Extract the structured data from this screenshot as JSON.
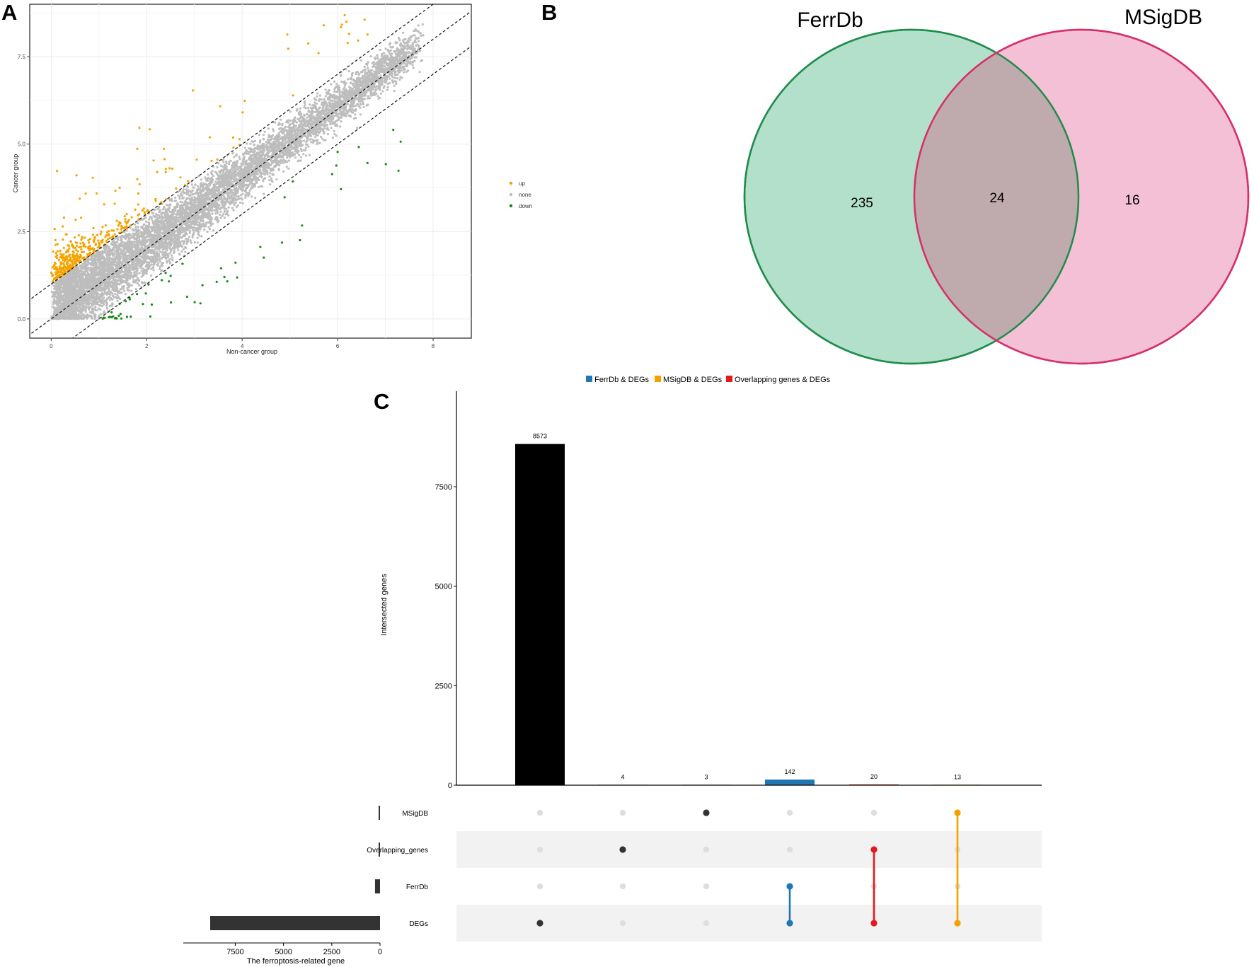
{
  "panels": {
    "a": "A",
    "b": "B",
    "c": "C"
  },
  "colors": {
    "up": "#f5a300",
    "none": "#bdbdbd",
    "down": "#168c16",
    "ferrdb": "#1f77b4",
    "msigdb": "#f5a000",
    "overlap": "#e31a1c",
    "venn_left_fill": "#b3e0ca",
    "venn_left_stroke": "#1e8c4a",
    "venn_right_fill": "#f4c0d6",
    "venn_right_stroke": "#d6306c",
    "venn_overlap_fill": "#bfaaae"
  },
  "chart_data": [
    {
      "type": "scatter",
      "panel": "A",
      "xlabel": "Non-cancer group",
      "ylabel": "Cancer group",
      "xlim": [
        -0.45,
        8.8
      ],
      "ylim": [
        -0.55,
        9.0
      ],
      "xticks": [
        "0",
        "2",
        "4",
        "6",
        "8"
      ],
      "yticks": [
        "0.0",
        "2.5",
        "5.0",
        "7.5"
      ],
      "xtick_values": [
        0,
        2,
        4,
        6,
        8
      ],
      "ytick_values": [
        0,
        2.5,
        5,
        7.5
      ],
      "reference_lines": [
        {
          "slope": 1,
          "intercept": 1
        },
        {
          "slope": 1,
          "intercept": 0
        },
        {
          "slope": 1,
          "intercept": -1
        }
      ],
      "legend": [
        {
          "label": "up",
          "color": "#f5a300"
        },
        {
          "label": "none",
          "color": "#bdbdbd"
        },
        {
          "label": "down",
          "color": "#168c16"
        }
      ],
      "legend_position": "right",
      "series": [
        {
          "name": "up",
          "description": "points above y = x + 1 (expression up in cancer)"
        },
        {
          "name": "none",
          "description": "points within the band |y - x| < 1"
        },
        {
          "name": "down",
          "description": "points below y = x - 1 (expression down in cancer)"
        }
      ]
    },
    {
      "type": "venn",
      "panel": "B",
      "sets": [
        {
          "name": "FerrDb",
          "only": "235"
        },
        {
          "name": "MSigDB",
          "only": "16"
        }
      ],
      "intersection": "24"
    },
    {
      "type": "upset",
      "panel": "C",
      "legend": [
        {
          "label": "FerrDb & DEGs",
          "color": "#1f77b4"
        },
        {
          "label": "MSigDB & DEGs",
          "color": "#f5a000"
        },
        {
          "label": "Overlapping genes & DEGs",
          "color": "#e31a1c"
        }
      ],
      "ylabel": "Intersected genes",
      "ylim": [
        0,
        9900
      ],
      "yticks": [
        "0",
        "2500",
        "5000",
        "7500"
      ],
      "ytick_values": [
        0,
        2500,
        5000,
        7500
      ],
      "sets": [
        "MSigDB",
        "Overlapping_genes",
        "FerrDb",
        "DEGs"
      ],
      "set_sizes": [
        40,
        44,
        259,
        8800
      ],
      "set_size_xlabel": "The ferroptosis-related gene",
      "set_size_ticks": [
        "7500",
        "5000",
        "2500",
        "0"
      ],
      "set_size_tick_values": [
        7500,
        5000,
        2500,
        0
      ],
      "set_size_max": 9900,
      "intersections": [
        {
          "label": "8573",
          "value": 8573,
          "members": [
            "DEGs"
          ],
          "color": "#000000"
        },
        {
          "label": "4",
          "value": 4,
          "members": [
            "Overlapping_genes"
          ],
          "color": "#000000"
        },
        {
          "label": "3",
          "value": 3,
          "members": [
            "MSigDB"
          ],
          "color": "#000000"
        },
        {
          "label": "142",
          "value": 142,
          "members": [
            "FerrDb",
            "DEGs"
          ],
          "color": "#1f77b4"
        },
        {
          "label": "20",
          "value": 20,
          "members": [
            "Overlapping_genes",
            "DEGs"
          ],
          "color": "#e31a1c"
        },
        {
          "label": "13",
          "value": 13,
          "members": [
            "MSigDB",
            "DEGs"
          ],
          "color": "#f5a000"
        }
      ]
    }
  ]
}
